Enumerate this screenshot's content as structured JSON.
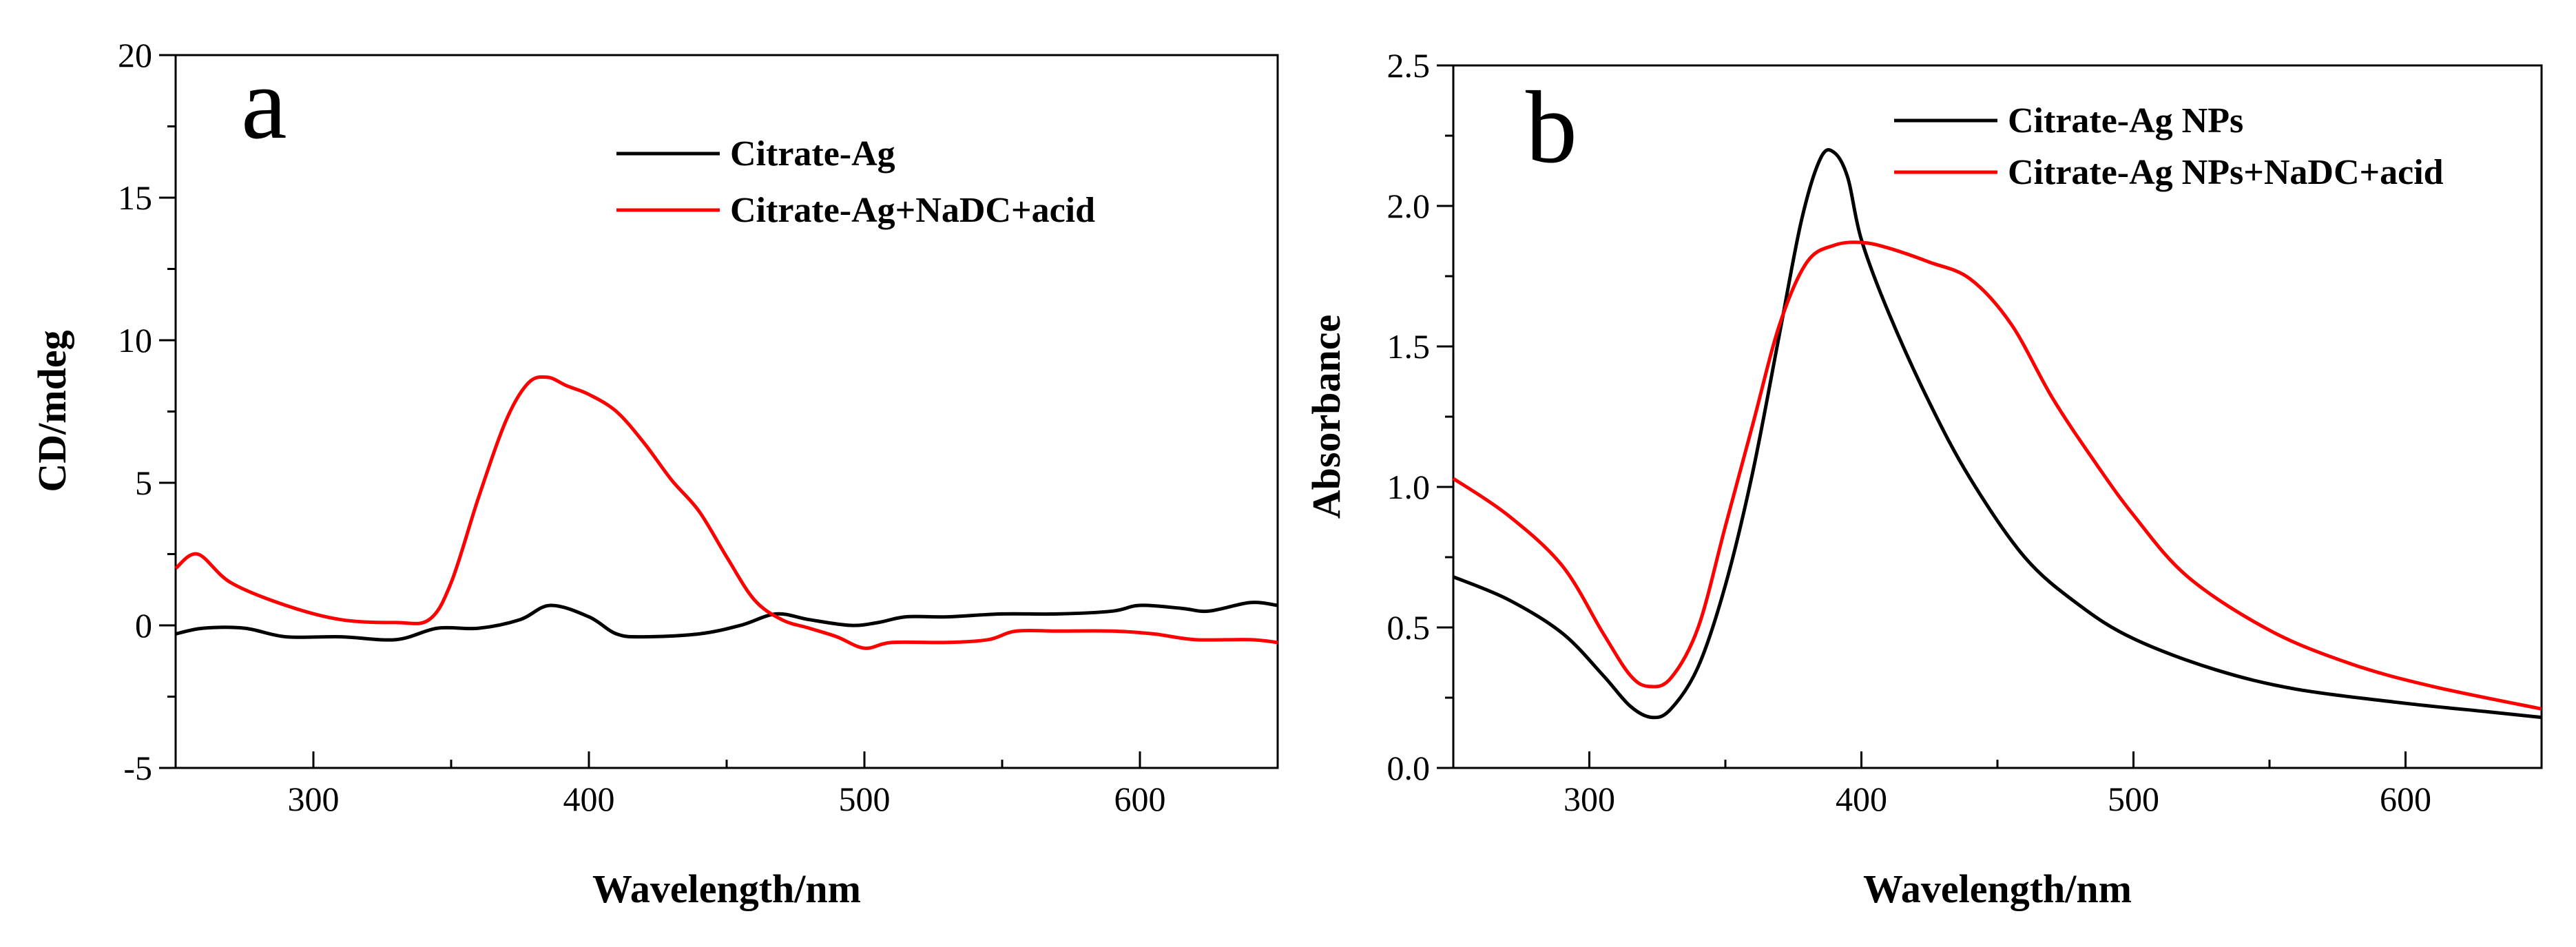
{
  "chart_data": [
    {
      "type": "line",
      "panel_label": "a",
      "xlabel": "Wavelength/nm",
      "ylabel": "CD/mdeg",
      "xlim": [
        250,
        650
      ],
      "ylim": [
        -5,
        20
      ],
      "xticks": [
        300,
        400,
        500,
        600
      ],
      "yticks": [
        -5,
        0,
        5,
        10,
        15,
        20
      ],
      "legend_position": "top-right",
      "series": [
        {
          "name": "Citrate-Ag",
          "color": "#000000",
          "x": [
            250,
            260,
            275,
            290,
            310,
            330,
            345,
            360,
            375,
            386,
            400,
            410,
            420,
            440,
            455,
            468,
            480,
            495,
            505,
            515,
            530,
            550,
            570,
            590,
            600,
            615,
            625,
            640,
            650
          ],
          "y": [
            -0.3,
            -0.1,
            -0.1,
            -0.4,
            -0.4,
            -0.5,
            -0.1,
            -0.1,
            0.2,
            0.7,
            0.3,
            -0.3,
            -0.4,
            -0.3,
            0.0,
            0.4,
            0.2,
            0.0,
            0.1,
            0.3,
            0.3,
            0.4,
            0.4,
            0.5,
            0.7,
            0.6,
            0.5,
            0.8,
            0.7
          ]
        },
        {
          "name": "Citrate-Ag+NaDC+acid",
          "color": "#ff0000",
          "x": [
            250,
            258,
            270,
            290,
            310,
            330,
            342,
            350,
            360,
            370,
            378,
            385,
            392,
            400,
            410,
            420,
            430,
            440,
            450,
            460,
            470,
            480,
            490,
            500,
            510,
            530,
            545,
            555,
            570,
            590,
            605,
            620,
            640,
            650
          ],
          "y": [
            2.0,
            2.5,
            1.5,
            0.7,
            0.2,
            0.1,
            0.2,
            1.5,
            4.5,
            7.2,
            8.5,
            8.7,
            8.4,
            8.1,
            7.5,
            6.4,
            5.1,
            4.0,
            2.4,
            0.9,
            0.2,
            -0.1,
            -0.4,
            -0.8,
            -0.6,
            -0.6,
            -0.5,
            -0.2,
            -0.2,
            -0.2,
            -0.3,
            -0.5,
            -0.5,
            -0.6
          ]
        }
      ]
    },
    {
      "type": "line",
      "panel_label": "b",
      "xlabel": "Wavelength/nm",
      "ylabel": "Absorbance",
      "xlim": [
        250,
        650
      ],
      "ylim": [
        0.0,
        2.5
      ],
      "xticks": [
        300,
        400,
        500,
        600
      ],
      "yticks": [
        "0.0",
        "0.5",
        "1.0",
        "1.5",
        "2.0",
        "2.5"
      ],
      "legend_position": "top-right",
      "series": [
        {
          "name": "Citrate-Ag NPs",
          "color": "#000000",
          "x": [
            250,
            270,
            290,
            305,
            315,
            323,
            330,
            340,
            350,
            360,
            370,
            378,
            385,
            390,
            395,
            400,
            410,
            425,
            440,
            460,
            480,
            500,
            530,
            560,
            600,
            630,
            650
          ],
          "y": [
            0.68,
            0.6,
            0.48,
            0.33,
            0.22,
            0.18,
            0.21,
            0.36,
            0.65,
            1.05,
            1.55,
            1.95,
            2.17,
            2.19,
            2.1,
            1.88,
            1.62,
            1.3,
            1.03,
            0.75,
            0.58,
            0.46,
            0.35,
            0.28,
            0.23,
            0.2,
            0.18
          ]
        },
        {
          "name": "Citrate-Ag NPs+NaDC+acid",
          "color": "#ff0000",
          "x": [
            250,
            270,
            290,
            305,
            315,
            322,
            330,
            340,
            350,
            360,
            370,
            380,
            390,
            400,
            410,
            425,
            440,
            455,
            470,
            485,
            500,
            520,
            550,
            580,
            610,
            650
          ],
          "y": [
            1.03,
            0.9,
            0.72,
            0.48,
            0.33,
            0.29,
            0.32,
            0.5,
            0.86,
            1.22,
            1.58,
            1.8,
            1.86,
            1.87,
            1.85,
            1.8,
            1.74,
            1.58,
            1.32,
            1.1,
            0.9,
            0.68,
            0.49,
            0.37,
            0.29,
            0.21
          ]
        }
      ]
    }
  ]
}
